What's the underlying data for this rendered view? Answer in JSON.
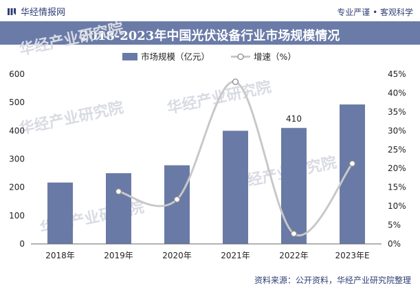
{
  "header": {
    "brand": "华经情报网",
    "slogan": "专业严谨 • 客观科学"
  },
  "title": "2018-2023年中国光伏设备行业市场规模情况",
  "source": "资料来源：公开资料，华经产业研究院整理",
  "watermark": {
    "brand": "华经产业研究院",
    "url": "www.huaon.com"
  },
  "colors": {
    "bar": "#6a7aa6",
    "line": "#c8c8c8",
    "marker_stroke": "#8a8a8a",
    "title_bg": "#6a7ba8",
    "brand": "#2f3f75"
  },
  "chart_data": {
    "type": "bar",
    "categories": [
      "2018年",
      "2019年",
      "2020年",
      "2021年",
      "2022年",
      "2023年E"
    ],
    "series": [
      {
        "name": "市场规模（亿元）",
        "type": "bar",
        "axis": "left",
        "values": [
          217,
          250,
          278,
          400,
          410,
          493
        ]
      },
      {
        "name": "增速（%）",
        "type": "line",
        "axis": "right",
        "values": [
          null,
          13.9,
          11.8,
          43.0,
          2.7,
          21.3
        ]
      }
    ],
    "data_labels": [
      {
        "category": "2022年",
        "series": "市场规模（亿元）",
        "text": "410"
      }
    ],
    "y_left": {
      "ylim": [
        0,
        600
      ],
      "ticks": [
        "0",
        "100",
        "200",
        "300",
        "400",
        "500",
        "600"
      ]
    },
    "y_right": {
      "ylim": [
        0,
        45
      ],
      "ticks": [
        "0%",
        "5%",
        "10%",
        "15%",
        "20%",
        "25%",
        "30%",
        "35%",
        "40%",
        "45%"
      ]
    },
    "grid": false,
    "legend": "top-center"
  }
}
